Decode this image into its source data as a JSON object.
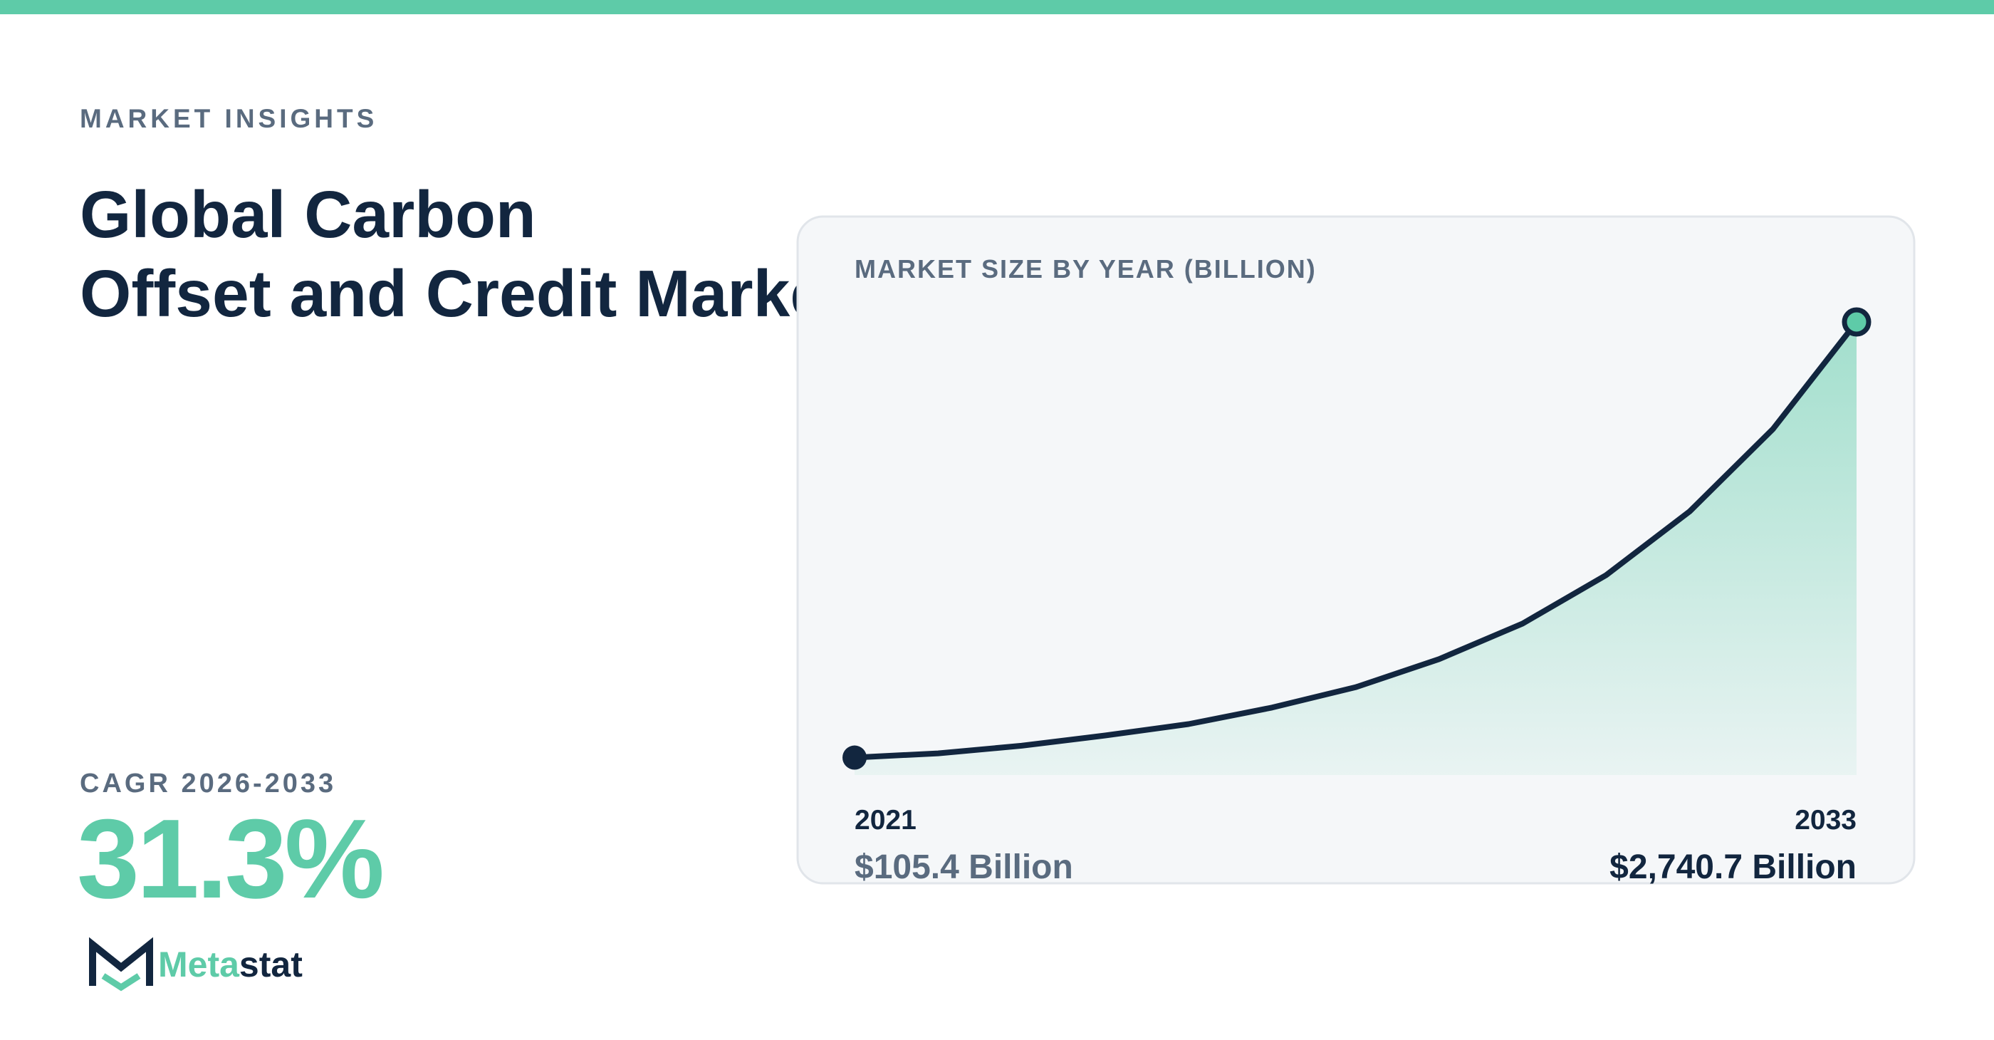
{
  "header": {
    "eyebrow": "MARKET INSIGHTS",
    "title_lines": [
      "Global Carbon",
      "Offset and Credit Market"
    ]
  },
  "cagr": {
    "label": "CAGR 2026-2033",
    "value": "31.3%"
  },
  "brand": {
    "name_parts": [
      "Meta",
      "stat"
    ]
  },
  "chart_data": {
    "type": "line",
    "title": "MARKET SIZE BY YEAR (BILLION)",
    "categories": [
      "2021",
      null,
      null,
      null,
      null,
      null,
      null,
      null,
      null,
      null,
      null,
      null,
      "2033"
    ],
    "values": [
      105.4,
      131,
      177,
      239,
      308,
      408,
      531,
      701,
      916,
      1209,
      1594,
      2094,
      2740.7
    ],
    "value_labels": [
      "$105.4 Billion",
      null,
      null,
      null,
      null,
      null,
      null,
      null,
      null,
      null,
      null,
      null,
      "$2,740.7 Billion"
    ],
    "ylim": [
      0,
      2740.7
    ],
    "color": "#12263f",
    "fill_color": "#5ecba8",
    "grid": false
  }
}
